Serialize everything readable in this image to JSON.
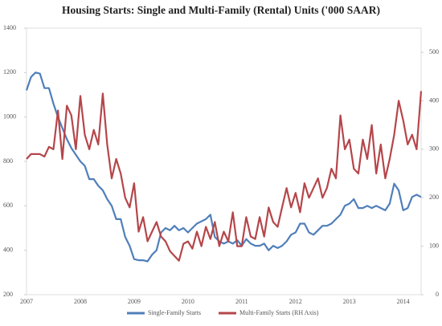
{
  "chart_data": {
    "type": "line",
    "title": "Housing Starts: Single and Multi-Family (Rental) Units  ('000 SAAR)",
    "categories": [
      "2007",
      null,
      null,
      null,
      null,
      null,
      null,
      null,
      null,
      null,
      null,
      null,
      "2008",
      null,
      null,
      null,
      null,
      null,
      null,
      null,
      null,
      null,
      null,
      null,
      "2009",
      null,
      null,
      null,
      null,
      null,
      null,
      null,
      null,
      null,
      null,
      null,
      "2010",
      null,
      null,
      null,
      null,
      null,
      null,
      null,
      null,
      null,
      null,
      null,
      "2011",
      null,
      null,
      null,
      null,
      null,
      null,
      null,
      null,
      null,
      null,
      null,
      "2012",
      null,
      null,
      null,
      null,
      null,
      null,
      null,
      null,
      null,
      null,
      null,
      "2013",
      null,
      null,
      null,
      null,
      null,
      null,
      null,
      null,
      null,
      null,
      null,
      "2014",
      null,
      null,
      null,
      null
    ],
    "series": [
      {
        "name": "Single-Family Starts",
        "color": "#4f7fba",
        "axis": "y",
        "values": [
          1120,
          1180,
          1200,
          1195,
          1130,
          1130,
          1060,
          1000,
          950,
          900,
          860,
          830,
          800,
          780,
          720,
          720,
          690,
          670,
          630,
          600,
          540,
          540,
          460,
          420,
          360,
          355,
          355,
          350,
          380,
          400,
          480,
          500,
          490,
          510,
          490,
          500,
          480,
          500,
          520,
          530,
          540,
          560,
          460,
          440,
          430,
          440,
          430,
          445,
          420,
          450,
          430,
          420,
          420,
          430,
          400,
          420,
          410,
          420,
          440,
          470,
          480,
          520,
          520,
          480,
          470,
          490,
          510,
          510,
          520,
          540,
          560,
          600,
          610,
          630,
          590,
          590,
          600,
          590,
          600,
          590,
          580,
          610,
          700,
          670,
          580,
          590,
          640,
          650,
          640
        ]
      },
      {
        "name": "Multi-Family Starts (RH Axis)",
        "color": "#b5464a",
        "axis": "y2",
        "values": [
          280,
          290,
          290,
          290,
          285,
          305,
          300,
          380,
          280,
          390,
          370,
          300,
          410,
          330,
          300,
          340,
          310,
          415,
          310,
          240,
          280,
          250,
          200,
          180,
          230,
          130,
          160,
          110,
          130,
          150,
          120,
          110,
          90,
          80,
          70,
          105,
          110,
          95,
          130,
          100,
          140,
          115,
          150,
          100,
          130,
          110,
          170,
          100,
          100,
          160,
          120,
          115,
          160,
          120,
          180,
          150,
          140,
          180,
          220,
          180,
          210,
          170,
          230,
          200,
          220,
          240,
          200,
          220,
          260,
          240,
          370,
          300,
          320,
          260,
          250,
          320,
          280,
          350,
          250,
          310,
          240,
          280,
          330,
          400,
          360,
          310,
          330,
          300,
          420
        ]
      }
    ],
    "ylim": [
      200,
      1400
    ],
    "yticks": [
      200,
      400,
      600,
      800,
      1000,
      1200,
      1400
    ],
    "y2lim": [
      0,
      550
    ],
    "y2ticks": [
      0,
      100,
      200,
      300,
      400,
      500
    ]
  }
}
